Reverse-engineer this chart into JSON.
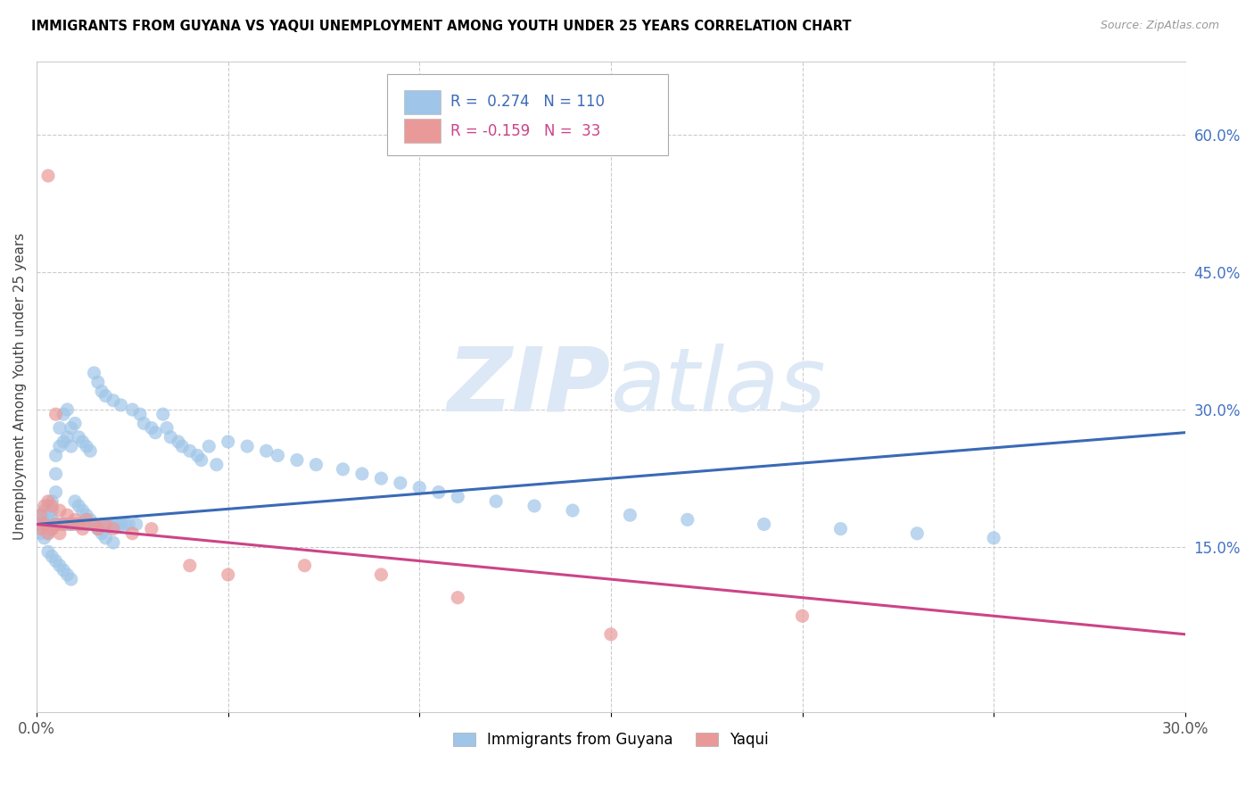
{
  "title": "IMMIGRANTS FROM GUYANA VS YAQUI UNEMPLOYMENT AMONG YOUTH UNDER 25 YEARS CORRELATION CHART",
  "source": "Source: ZipAtlas.com",
  "ylabel_left": "Unemployment Among Youth under 25 years",
  "xlim": [
    0.0,
    0.3
  ],
  "ylim": [
    -0.03,
    0.68
  ],
  "xtick_positions": [
    0.0,
    0.05,
    0.1,
    0.15,
    0.2,
    0.25,
    0.3
  ],
  "xticklabels": [
    "0.0%",
    "",
    "",
    "",
    "",
    "",
    "30.0%"
  ],
  "yticks_right": [
    0.15,
    0.3,
    0.45,
    0.6
  ],
  "ytick_right_labels": [
    "15.0%",
    "30.0%",
    "45.0%",
    "60.0%"
  ],
  "blue_color": "#9fc5e8",
  "pink_color": "#ea9999",
  "blue_line_color": "#3a6ab5",
  "pink_line_color": "#cc4488",
  "watermark_zip": "ZIP",
  "watermark_atlas": "atlas",
  "watermark_color": "#dce8f5",
  "legend_blue_r": "0.274",
  "legend_blue_n": "110",
  "legend_pink_r": "-0.159",
  "legend_pink_n": "33",
  "legend_label_blue": "Immigrants from Guyana",
  "legend_label_pink": "Yaqui",
  "blue_trend_x0": 0.0,
  "blue_trend_x1": 0.3,
  "blue_trend_y0": 0.175,
  "blue_trend_y1": 0.275,
  "pink_trend_x0": 0.0,
  "pink_trend_x1": 0.3,
  "pink_trend_y0": 0.175,
  "pink_trend_y1": 0.055,
  "blue_x": [
    0.001,
    0.001,
    0.001,
    0.002,
    0.002,
    0.002,
    0.002,
    0.003,
    0.003,
    0.003,
    0.003,
    0.004,
    0.004,
    0.004,
    0.004,
    0.005,
    0.005,
    0.005,
    0.005,
    0.006,
    0.006,
    0.006,
    0.007,
    0.007,
    0.007,
    0.008,
    0.008,
    0.008,
    0.009,
    0.009,
    0.009,
    0.01,
    0.01,
    0.011,
    0.011,
    0.012,
    0.012,
    0.013,
    0.013,
    0.014,
    0.015,
    0.015,
    0.016,
    0.017,
    0.017,
    0.018,
    0.018,
    0.019,
    0.02,
    0.02,
    0.021,
    0.022,
    0.022,
    0.023,
    0.024,
    0.025,
    0.026,
    0.027,
    0.028,
    0.03,
    0.031,
    0.033,
    0.034,
    0.035,
    0.037,
    0.038,
    0.04,
    0.042,
    0.043,
    0.045,
    0.047,
    0.05,
    0.055,
    0.06,
    0.063,
    0.068,
    0.073,
    0.08,
    0.085,
    0.09,
    0.095,
    0.1,
    0.105,
    0.11,
    0.12,
    0.13,
    0.14,
    0.155,
    0.17,
    0.19,
    0.21,
    0.23,
    0.25,
    0.003,
    0.004,
    0.005,
    0.006,
    0.007,
    0.008,
    0.009,
    0.01,
    0.011,
    0.012,
    0.013,
    0.014,
    0.015,
    0.016,
    0.017,
    0.018,
    0.02
  ],
  "blue_y": [
    0.185,
    0.175,
    0.165,
    0.19,
    0.18,
    0.17,
    0.16,
    0.195,
    0.185,
    0.175,
    0.165,
    0.2,
    0.19,
    0.18,
    0.17,
    0.25,
    0.23,
    0.21,
    0.175,
    0.28,
    0.26,
    0.175,
    0.295,
    0.265,
    0.175,
    0.3,
    0.27,
    0.175,
    0.28,
    0.26,
    0.175,
    0.285,
    0.175,
    0.27,
    0.175,
    0.265,
    0.175,
    0.26,
    0.175,
    0.255,
    0.34,
    0.175,
    0.33,
    0.32,
    0.175,
    0.315,
    0.175,
    0.175,
    0.31,
    0.175,
    0.175,
    0.305,
    0.175,
    0.175,
    0.175,
    0.3,
    0.175,
    0.295,
    0.285,
    0.28,
    0.275,
    0.295,
    0.28,
    0.27,
    0.265,
    0.26,
    0.255,
    0.25,
    0.245,
    0.26,
    0.24,
    0.265,
    0.26,
    0.255,
    0.25,
    0.245,
    0.24,
    0.235,
    0.23,
    0.225,
    0.22,
    0.215,
    0.21,
    0.205,
    0.2,
    0.195,
    0.19,
    0.185,
    0.18,
    0.175,
    0.17,
    0.165,
    0.16,
    0.145,
    0.14,
    0.135,
    0.13,
    0.125,
    0.12,
    0.115,
    0.2,
    0.195,
    0.19,
    0.185,
    0.18,
    0.175,
    0.17,
    0.165,
    0.16,
    0.155
  ],
  "pink_x": [
    0.001,
    0.001,
    0.002,
    0.002,
    0.003,
    0.003,
    0.004,
    0.004,
    0.005,
    0.005,
    0.006,
    0.006,
    0.007,
    0.008,
    0.009,
    0.01,
    0.011,
    0.012,
    0.013,
    0.015,
    0.016,
    0.018,
    0.02,
    0.025,
    0.03,
    0.04,
    0.05,
    0.07,
    0.09,
    0.11,
    0.15,
    0.2,
    0.003
  ],
  "pink_y": [
    0.185,
    0.17,
    0.195,
    0.175,
    0.2,
    0.165,
    0.195,
    0.17,
    0.295,
    0.175,
    0.19,
    0.165,
    0.175,
    0.185,
    0.175,
    0.18,
    0.175,
    0.17,
    0.18,
    0.175,
    0.17,
    0.175,
    0.17,
    0.165,
    0.17,
    0.13,
    0.12,
    0.13,
    0.12,
    0.095,
    0.055,
    0.075,
    0.555
  ]
}
